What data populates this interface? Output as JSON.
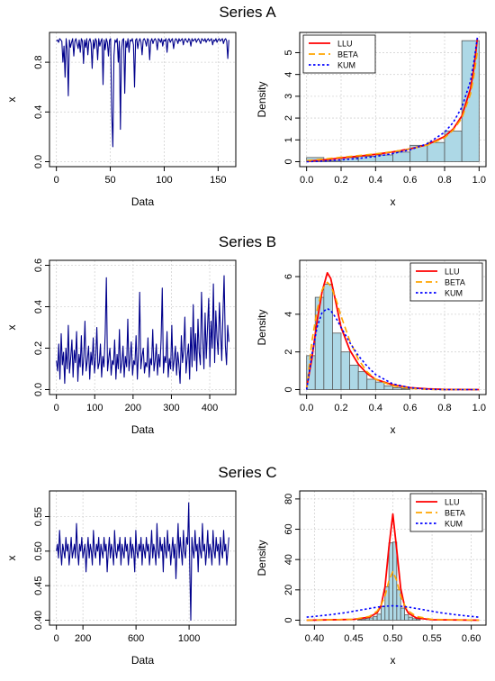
{
  "chart_data": [
    {
      "id": "A-ts",
      "type": "line",
      "group_title": "Series A",
      "xlabel": "Data",
      "ylabel": "x",
      "xlim": [
        0,
        160
      ],
      "ylim": [
        0,
        1
      ],
      "xticks": [
        0,
        50,
        100,
        150
      ],
      "yticks": [
        0.0,
        0.4,
        0.8
      ],
      "grid": true,
      "series": [
        {
          "color": "#00008b",
          "values": [
            0.97,
            0.98,
            0.96,
            0.99,
            0.98,
            0.97,
            0.8,
            0.93,
            0.68,
            0.99,
            0.9,
            0.53,
            0.98,
            0.92,
            0.96,
            0.99,
            0.85,
            0.97,
            0.99,
            0.95,
            0.91,
            0.98,
            0.88,
            0.99,
            0.97,
            0.79,
            0.98,
            0.92,
            0.99,
            0.86,
            0.97,
            0.99,
            0.95,
            0.75,
            0.98,
            0.91,
            0.99,
            0.97,
            0.82,
            0.99,
            0.93,
            0.97,
            0.99,
            0.62,
            0.98,
            0.9,
            0.99,
            0.96,
            0.85,
            0.98,
            0.99,
            0.4,
            0.12,
            0.85,
            0.98,
            0.96,
            0.99,
            0.8,
            0.97,
            0.26,
            0.9,
            0.98,
            0.99,
            0.55,
            0.97,
            0.92,
            0.99,
            0.88,
            0.98,
            0.97,
            0.99,
            0.94,
            0.6,
            0.98,
            0.99,
            0.91,
            0.97,
            0.99,
            0.96,
            0.86,
            0.98,
            0.99,
            0.97,
            0.93,
            0.99,
            0.98,
            0.82,
            0.97,
            0.99,
            0.95,
            0.98,
            0.99,
            0.97,
            0.9,
            0.99,
            0.98,
            0.96,
            0.99,
            0.93,
            0.98,
            0.97,
            0.99,
            0.88,
            0.98,
            0.99,
            0.96,
            0.98,
            0.99,
            0.91,
            0.97,
            0.99,
            0.98,
            0.95,
            0.99,
            0.97,
            0.98,
            0.99,
            0.94,
            0.98,
            0.99,
            0.97,
            0.96,
            0.99,
            0.98,
            0.93,
            0.99,
            0.97,
            0.98,
            0.99,
            0.96,
            0.98,
            0.99,
            0.97,
            0.95,
            0.99,
            0.98,
            0.97,
            0.99,
            0.96,
            0.98,
            0.99,
            0.97,
            0.98,
            0.99,
            0.94,
            0.98,
            0.97,
            0.99,
            0.96,
            0.98,
            0.99,
            0.97,
            0.98,
            0.99,
            0.95,
            0.98,
            0.99,
            0.97,
            0.83,
            0.98
          ]
        }
      ]
    },
    {
      "id": "A-hist",
      "type": "histogram",
      "xlabel": "x",
      "ylabel": "Density",
      "xlim": [
        0,
        1
      ],
      "ylim": [
        0,
        5.7
      ],
      "xticks": [
        0.0,
        0.2,
        0.4,
        0.6,
        0.8,
        1.0
      ],
      "yticks": [
        0,
        1,
        2,
        3,
        4,
        5
      ],
      "grid": true,
      "bin_width": 0.1,
      "bins": [
        0.0,
        0.1,
        0.2,
        0.3,
        0.4,
        0.5,
        0.6,
        0.7,
        0.8,
        0.9
      ],
      "densities": [
        0.19,
        0.05,
        0.19,
        0.25,
        0.31,
        0.44,
        0.75,
        0.88,
        1.4,
        5.55
      ],
      "bar_color": "#add8e6",
      "legend": {
        "position": "top-left",
        "entries": [
          "LLU",
          "BETA",
          "KUM"
        ]
      },
      "series": [
        {
          "name": "LLU",
          "color": "#ff0000",
          "dash": "solid",
          "x": [
            0.0,
            0.1,
            0.2,
            0.3,
            0.4,
            0.5,
            0.6,
            0.7,
            0.8,
            0.85,
            0.9,
            0.95,
            0.97,
            0.99
          ],
          "y": [
            0.02,
            0.08,
            0.17,
            0.25,
            0.34,
            0.45,
            0.59,
            0.78,
            1.15,
            1.5,
            2.1,
            3.35,
            4.3,
            5.65
          ]
        },
        {
          "name": "BETA",
          "color": "#ffa500",
          "dash": "dashed",
          "x": [
            0.0,
            0.1,
            0.2,
            0.3,
            0.4,
            0.5,
            0.6,
            0.7,
            0.8,
            0.85,
            0.9,
            0.95,
            0.97,
            0.99
          ],
          "y": [
            0.05,
            0.12,
            0.2,
            0.28,
            0.36,
            0.46,
            0.58,
            0.76,
            1.1,
            1.45,
            2.0,
            3.1,
            3.95,
            5.05
          ]
        },
        {
          "name": "KUM",
          "color": "#0000ff",
          "dash": "dotted",
          "x": [
            0.0,
            0.1,
            0.2,
            0.3,
            0.4,
            0.5,
            0.6,
            0.7,
            0.8,
            0.85,
            0.9,
            0.95,
            0.97,
            0.99
          ],
          "y": [
            0.0,
            0.03,
            0.08,
            0.15,
            0.24,
            0.37,
            0.55,
            0.82,
            1.35,
            1.8,
            2.5,
            3.7,
            4.6,
            5.7
          ]
        }
      ]
    },
    {
      "id": "B-ts",
      "type": "line",
      "group_title": "Series B",
      "xlabel": "Data",
      "ylabel": "x",
      "xlim": [
        0,
        450
      ],
      "ylim": [
        0,
        0.6
      ],
      "xticks": [
        0,
        100,
        200,
        300,
        400
      ],
      "yticks": [
        0.0,
        0.2,
        0.4,
        0.6
      ],
      "grid": true,
      "series": [
        {
          "color": "#00008b",
          "values": [
            0.14,
            0.09,
            0.22,
            0.05,
            0.27,
            0.12,
            0.18,
            0.03,
            0.2,
            0.1,
            0.31,
            0.08,
            0.15,
            0.24,
            0.06,
            0.19,
            0.13,
            0.28,
            0.04,
            0.17,
            0.11,
            0.26,
            0.07,
            0.16,
            0.33,
            0.09,
            0.14,
            0.21,
            0.05,
            0.18,
            0.12,
            0.25,
            0.08,
            0.15,
            0.3,
            0.1,
            0.13,
            0.22,
            0.06,
            0.16,
            0.11,
            0.27,
            0.54,
            0.09,
            0.15,
            0.2,
            0.07,
            0.14,
            0.12,
            0.24,
            0.05,
            0.17,
            0.1,
            0.29,
            0.08,
            0.13,
            0.21,
            0.06,
            0.16,
            0.11,
            0.34,
            0.09,
            0.15,
            0.23,
            0.07,
            0.14,
            0.12,
            0.26,
            0.05,
            0.18,
            0.47,
            0.1,
            0.16,
            0.2,
            0.08,
            0.13,
            0.11,
            0.25,
            0.06,
            0.15,
            0.12,
            0.29,
            0.09,
            0.14,
            0.22,
            0.07,
            0.17,
            0.11,
            0.24,
            0.49,
            0.08,
            0.16,
            0.13,
            0.28,
            0.06,
            0.15,
            0.1,
            0.31,
            0.09,
            0.14,
            0.21,
            0.07,
            0.18,
            0.12,
            0.03,
            0.26,
            0.13,
            0.19,
            0.35,
            0.08,
            0.16,
            0.22,
            0.05,
            0.3,
            0.11,
            0.41,
            0.14,
            0.27,
            0.09,
            0.34,
            0.18,
            0.12,
            0.47,
            0.24,
            0.1,
            0.37,
            0.15,
            0.29,
            0.44,
            0.11,
            0.33,
            0.2,
            0.51,
            0.13,
            0.38,
            0.25,
            0.17,
            0.42,
            0.28,
            0.14,
            0.36,
            0.55,
            0.21,
            0.12,
            0.31,
            0.23
          ]
        }
      ]
    },
    {
      "id": "B-hist",
      "type": "histogram",
      "xlabel": "x",
      "ylabel": "Density",
      "xlim": [
        0,
        1
      ],
      "ylim": [
        0,
        6.6
      ],
      "xticks": [
        0.0,
        0.2,
        0.4,
        0.6,
        0.8,
        1.0
      ],
      "yticks": [
        0,
        2,
        4,
        6
      ],
      "grid": true,
      "bin_width": 0.05,
      "bins": [
        0.0,
        0.05,
        0.1,
        0.15,
        0.2,
        0.25,
        0.3,
        0.35,
        0.4,
        0.45,
        0.5,
        0.55
      ],
      "densities": [
        1.8,
        4.9,
        5.6,
        3.0,
        2.0,
        1.3,
        0.95,
        0.55,
        0.4,
        0.2,
        0.1,
        0.05
      ],
      "bar_color": "#add8e6",
      "legend": {
        "position": "top-right",
        "entries": [
          "LLU",
          "BETA",
          "KUM"
        ]
      },
      "series": [
        {
          "name": "LLU",
          "color": "#ff0000",
          "dash": "solid",
          "x": [
            0.0,
            0.03,
            0.06,
            0.09,
            0.12,
            0.14,
            0.17,
            0.2,
            0.25,
            0.3,
            0.35,
            0.4,
            0.5,
            0.6,
            0.7,
            0.8,
            1.0
          ],
          "y": [
            0.1,
            1.6,
            3.6,
            5.2,
            6.2,
            5.9,
            4.6,
            3.3,
            2.1,
            1.35,
            0.85,
            0.55,
            0.25,
            0.1,
            0.04,
            0.01,
            0.0
          ]
        },
        {
          "name": "BETA",
          "color": "#ffa500",
          "dash": "dashed",
          "x": [
            0.0,
            0.03,
            0.06,
            0.09,
            0.12,
            0.14,
            0.17,
            0.2,
            0.25,
            0.3,
            0.35,
            0.4,
            0.5,
            0.6,
            0.7,
            0.8,
            1.0
          ],
          "y": [
            0.0,
            2.5,
            4.2,
            5.3,
            5.7,
            5.5,
            4.8,
            3.9,
            2.6,
            1.6,
            0.95,
            0.55,
            0.2,
            0.06,
            0.01,
            0.0,
            0.0
          ]
        },
        {
          "name": "KUM",
          "color": "#0000ff",
          "dash": "dotted",
          "x": [
            0.0,
            0.03,
            0.06,
            0.09,
            0.12,
            0.14,
            0.17,
            0.2,
            0.25,
            0.3,
            0.35,
            0.4,
            0.5,
            0.6,
            0.7,
            0.8,
            1.0
          ],
          "y": [
            0.0,
            1.8,
            3.3,
            4.1,
            4.3,
            4.2,
            3.8,
            3.3,
            2.5,
            1.8,
            1.25,
            0.8,
            0.3,
            0.1,
            0.02,
            0.0,
            0.0
          ]
        }
      ]
    },
    {
      "id": "C-ts",
      "type": "line",
      "group_title": "Series C",
      "xlabel": "Data",
      "ylabel": "x",
      "xlim": [
        0,
        1300
      ],
      "ylim": [
        0.4,
        0.58
      ],
      "xticks": [
        0,
        200,
        600,
        1000
      ],
      "yticks": [
        0.4,
        0.45,
        0.5,
        0.55
      ],
      "grid": true,
      "series": [
        {
          "color": "#00008b",
          "values": [
            0.5,
            0.51,
            0.49,
            0.53,
            0.5,
            0.48,
            0.51,
            0.5,
            0.49,
            0.52,
            0.5,
            0.51,
            0.48,
            0.5,
            0.52,
            0.49,
            0.5,
            0.51,
            0.49,
            0.54,
            0.5,
            0.48,
            0.51,
            0.5,
            0.52,
            0.49,
            0.5,
            0.51,
            0.47,
            0.5,
            0.52,
            0.49,
            0.51,
            0.5,
            0.48,
            0.53,
            0.5,
            0.49,
            0.51,
            0.5,
            0.52,
            0.48,
            0.51,
            0.5,
            0.49,
            0.52,
            0.5,
            0.51,
            0.47,
            0.5,
            0.52,
            0.49,
            0.51,
            0.5,
            0.48,
            0.53,
            0.5,
            0.49,
            0.51,
            0.5,
            0.52,
            0.48,
            0.51,
            0.5,
            0.49,
            0.52,
            0.5,
            0.51,
            0.48,
            0.5,
            0.52,
            0.49,
            0.51,
            0.5,
            0.47,
            0.53,
            0.5,
            0.49,
            0.51,
            0.5,
            0.52,
            0.48,
            0.51,
            0.5,
            0.49,
            0.52,
            0.5,
            0.51,
            0.48,
            0.5,
            0.53,
            0.49,
            0.51,
            0.5,
            0.48,
            0.54,
            0.5,
            0.49,
            0.52,
            0.5,
            0.51,
            0.47,
            0.52,
            0.5,
            0.49,
            0.53,
            0.5,
            0.51,
            0.48,
            0.5,
            0.52,
            0.49,
            0.51,
            0.46,
            0.5,
            0.54,
            0.49,
            0.52,
            0.5,
            0.48,
            0.53,
            0.5,
            0.49,
            0.52,
            0.51,
            0.57,
            0.48,
            0.4,
            0.52,
            0.5,
            0.49,
            0.53,
            0.5,
            0.51,
            0.47,
            0.52,
            0.5,
            0.49,
            0.54,
            0.5,
            0.51,
            0.48,
            0.5,
            0.53,
            0.49,
            0.51,
            0.5,
            0.48,
            0.53,
            0.5,
            0.49,
            0.52,
            0.5,
            0.51,
            0.48,
            0.52,
            0.5,
            0.49,
            0.53,
            0.5,
            0.51,
            0.48,
            0.5,
            0.52
          ]
        }
      ]
    },
    {
      "id": "C-hist",
      "type": "histogram",
      "xlabel": "x",
      "ylabel": "Density",
      "xlim": [
        0.39,
        0.61
      ],
      "ylim": [
        0,
        82
      ],
      "xticks": [
        0.4,
        0.45,
        0.5,
        0.55,
        0.6
      ],
      "yticks": [
        0,
        20,
        40,
        60,
        80
      ],
      "grid": true,
      "bin_width": 0.005,
      "bins": [
        0.455,
        0.46,
        0.465,
        0.47,
        0.475,
        0.48,
        0.485,
        0.49,
        0.495,
        0.5,
        0.505,
        0.51,
        0.515,
        0.52,
        0.525,
        0.53
      ],
      "densities": [
        0.5,
        0.5,
        1.0,
        1.5,
        2.5,
        4.0,
        9.0,
        22.0,
        51.0,
        51.5,
        20.0,
        8.0,
        3.5,
        2.0,
        1.0,
        0.5
      ],
      "bar_color": "#add8e6",
      "legend": {
        "position": "top-right",
        "entries": [
          "LLU",
          "BETA",
          "KUM"
        ]
      },
      "series": [
        {
          "name": "LLU",
          "color": "#ff0000",
          "dash": "solid",
          "x": [
            0.39,
            0.45,
            0.47,
            0.48,
            0.485,
            0.49,
            0.495,
            0.5,
            0.505,
            0.51,
            0.515,
            0.52,
            0.53,
            0.55,
            0.61
          ],
          "y": [
            0.0,
            0.5,
            2.0,
            5.0,
            9.5,
            22.0,
            48.0,
            70.0,
            46.0,
            21.0,
            9.0,
            4.5,
            1.5,
            0.3,
            0.0
          ]
        },
        {
          "name": "BETA",
          "color": "#ffa500",
          "dash": "dashed",
          "x": [
            0.39,
            0.45,
            0.47,
            0.48,
            0.485,
            0.49,
            0.495,
            0.5,
            0.505,
            0.51,
            0.515,
            0.52,
            0.53,
            0.55,
            0.61
          ],
          "y": [
            0.0,
            0.6,
            2.5,
            6.0,
            10.0,
            16.0,
            26.0,
            32.0,
            26.0,
            16.0,
            10.0,
            6.0,
            2.5,
            0.5,
            0.0
          ]
        },
        {
          "name": "KUM",
          "color": "#0000ff",
          "dash": "dotted",
          "x": [
            0.39,
            0.4,
            0.42,
            0.44,
            0.46,
            0.48,
            0.49,
            0.5,
            0.51,
            0.52,
            0.54,
            0.56,
            0.58,
            0.6,
            0.61
          ],
          "y": [
            2.0,
            2.5,
            3.6,
            5.0,
            6.8,
            8.6,
            9.2,
            9.5,
            9.2,
            8.6,
            6.8,
            5.0,
            3.6,
            2.5,
            2.0
          ]
        }
      ]
    }
  ]
}
